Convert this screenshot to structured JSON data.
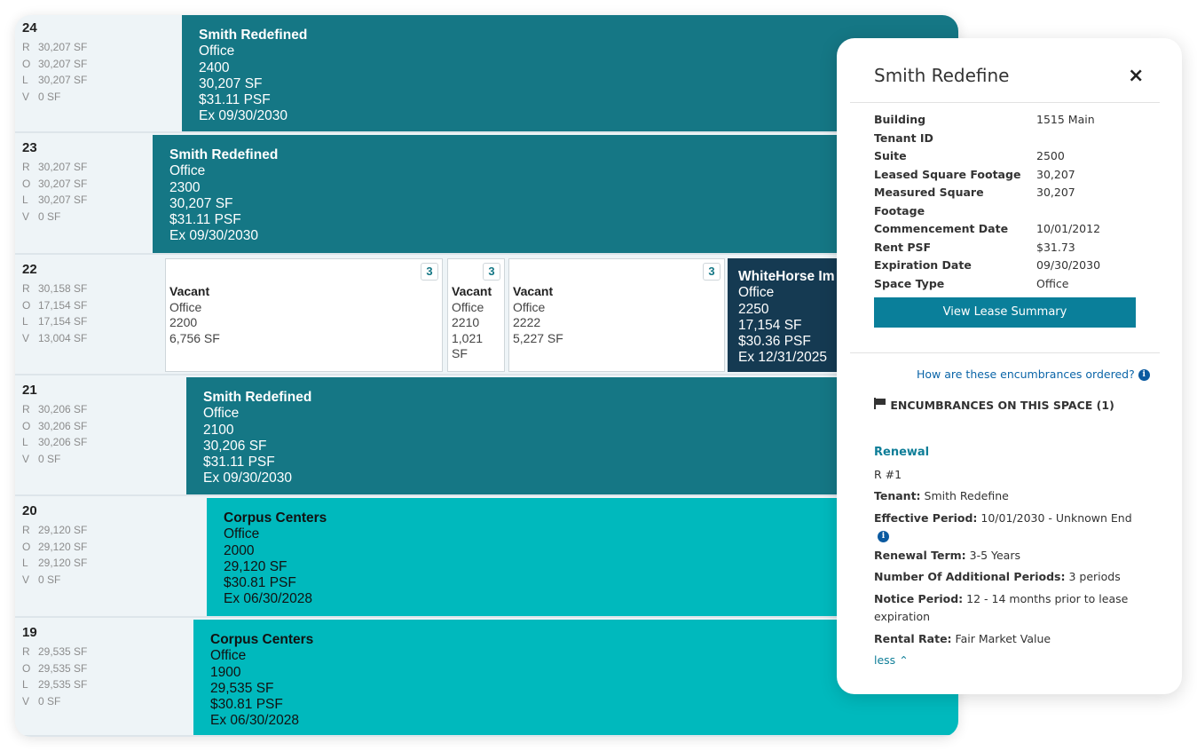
{
  "colors": {
    "leased_dark": "#157785",
    "leased_bright": "#00b9bd",
    "selected": "#153a52",
    "accent": "#0a7f9a"
  },
  "floors": [
    {
      "floor": "24",
      "stats": [
        [
          "R",
          "30,207 SF"
        ],
        [
          "O",
          "30,207 SF"
        ],
        [
          "L",
          "30,207 SF"
        ],
        [
          "V",
          "0 SF"
        ]
      ],
      "spaces": [
        {
          "kind": "leased",
          "style": "teal",
          "tenant": "Smith Redefined",
          "type": "Office",
          "suite": "2400",
          "sf": "30,207 SF",
          "psf": "$31.11 PSF",
          "exp": "Ex 09/30/2030"
        }
      ]
    },
    {
      "floor": "23",
      "stats": [
        [
          "R",
          "30,207 SF"
        ],
        [
          "O",
          "30,207 SF"
        ],
        [
          "L",
          "30,207 SF"
        ],
        [
          "V",
          "0 SF"
        ]
      ],
      "spaces": [
        {
          "kind": "leased",
          "style": "teal",
          "tenant": "Smith Redefined",
          "type": "Office",
          "suite": "2300",
          "sf": "30,207 SF",
          "psf": "$31.11 PSF",
          "exp": "Ex 09/30/2030"
        }
      ]
    },
    {
      "floor": "22",
      "stats": [
        [
          "R",
          "30,158 SF"
        ],
        [
          "O",
          "17,154 SF"
        ],
        [
          "L",
          "17,154 SF"
        ],
        [
          "V",
          "13,004 SF"
        ]
      ],
      "spaces": [
        {
          "kind": "vacant",
          "tenant": "Vacant",
          "type": "Office",
          "suite": "2200",
          "sf": "6,756 SF",
          "badge": "3"
        },
        {
          "kind": "vacant",
          "tenant": "Vacant",
          "type": "Office",
          "suite": "2210",
          "sf": "1,021 SF",
          "badge": "3"
        },
        {
          "kind": "vacant",
          "tenant": "Vacant",
          "type": "Office",
          "suite": "2222",
          "sf": "5,227 SF",
          "badge": "3"
        },
        {
          "kind": "leased",
          "style": "navy",
          "tenant": "WhiteHorse Im",
          "type": "Office",
          "suite": "2250",
          "sf": "17,154 SF",
          "psf": "$30.36 PSF",
          "exp": "Ex 12/31/2025"
        }
      ]
    },
    {
      "floor": "21",
      "stats": [
        [
          "R",
          "30,206 SF"
        ],
        [
          "O",
          "30,206 SF"
        ],
        [
          "L",
          "30,206 SF"
        ],
        [
          "V",
          "0 SF"
        ]
      ],
      "spaces": [
        {
          "kind": "leased",
          "style": "teal",
          "tenant": "Smith Redefined",
          "type": "Office",
          "suite": "2100",
          "sf": "30,206 SF",
          "psf": "$31.11 PSF",
          "exp": "Ex 09/30/2030"
        }
      ]
    },
    {
      "floor": "20",
      "stats": [
        [
          "R",
          "29,120 SF"
        ],
        [
          "O",
          "29,120 SF"
        ],
        [
          "L",
          "29,120 SF"
        ],
        [
          "V",
          "0 SF"
        ]
      ],
      "spaces": [
        {
          "kind": "leased",
          "style": "cyan",
          "tenant": "Corpus Centers",
          "type": "Office",
          "suite": "2000",
          "sf": "29,120 SF",
          "psf": "$30.81 PSF",
          "exp": "Ex 06/30/2028"
        }
      ]
    },
    {
      "floor": "19",
      "stats": [
        [
          "R",
          "29,535 SF"
        ],
        [
          "O",
          "29,535 SF"
        ],
        [
          "L",
          "29,535 SF"
        ],
        [
          "V",
          "0 SF"
        ]
      ],
      "spaces": [
        {
          "kind": "leased",
          "style": "cyan",
          "tenant": "Corpus Centers",
          "type": "Office",
          "suite": "1900",
          "sf": "29,535 SF",
          "psf": "$30.81 PSF",
          "exp": "Ex 06/30/2028"
        }
      ]
    }
  ],
  "panel": {
    "title": "Smith Redefine",
    "close_icon": "×",
    "fields": [
      {
        "label": "Building",
        "value": "1515 Main"
      },
      {
        "label": "Tenant ID",
        "value": ""
      },
      {
        "label": "Suite",
        "value": "2500"
      },
      {
        "label": "Leased Square Footage",
        "value": "30,207"
      },
      {
        "label": "Measured Square Footage",
        "value": "30,207"
      },
      {
        "label": "Commencement Date",
        "value": "10/01/2012"
      },
      {
        "label": "Rent PSF",
        "value": "$31.73"
      },
      {
        "label": "Expiration Date",
        "value": "09/30/2030"
      },
      {
        "label": "Space Type",
        "value": "Office"
      }
    ],
    "view_button": "View Lease Summary",
    "how_link": "How are these encumbrances ordered?",
    "enc_heading": "ENCUMBRANCES ON THIS SPACE (1)",
    "encumbrance": {
      "type": "Renewal",
      "id": "R #1",
      "tenant_label": "Tenant:",
      "tenant": "Smith Redefine",
      "period_label": "Effective Period:",
      "period": "10/01/2030 - Unknown End",
      "term_label": "Renewal Term:",
      "term": "3-5 Years",
      "periods_label": "Number Of Additional Periods:",
      "periods": "3 periods",
      "notice_label": "Notice Period:",
      "notice": "12 - 14 months prior to lease expiration",
      "rate_label": "Rental Rate:",
      "rate": "Fair Market Value",
      "less": "less"
    }
  }
}
